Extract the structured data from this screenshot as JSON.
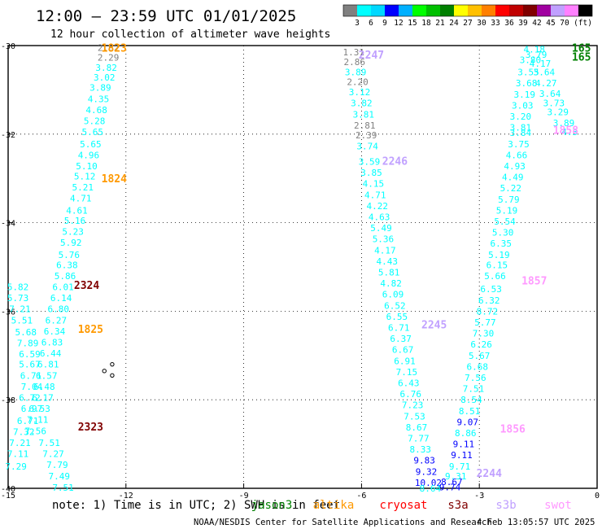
{
  "title": "12:00 — 23:59 UTC 01/01/2025",
  "subtitle": "12 hour collection of altimeter wave heights",
  "colorbar": {
    "unit": "(ft)",
    "ticks": [
      "3",
      "6",
      "9",
      "12",
      "15",
      "18",
      "21",
      "24",
      "27",
      "30",
      "33",
      "36",
      "39",
      "42",
      "45",
      "70"
    ],
    "colors": [
      "#808080",
      "#00ffff",
      "#00d8ff",
      "#0000ff",
      "#00b0ff",
      "#00ff00",
      "#00c000",
      "#008000",
      "#ffff00",
      "#ffc000",
      "#ff8000",
      "#ff0000",
      "#c00000",
      "#800000",
      "#a000a0",
      "#c0a0ff",
      "#ff80ff",
      "#000000"
    ]
  },
  "footer": {
    "note": "note:  1) Time is in UTC; 2) SWH is in feet",
    "credit": "NOAA/NESDIS Center for Satellite Applications and Research",
    "timestamp": "4 Feb 13:05:57 UTC 2025"
  },
  "satellite_legend": [
    {
      "name": "jason3",
      "color": "#008000"
    },
    {
      "name": "altika",
      "color": "#ff9900"
    },
    {
      "name": "cryosat",
      "color": "#ff0000"
    },
    {
      "name": "s3a",
      "color": "#800000"
    },
    {
      "name": "s3b",
      "color": "#c0a0ff"
    },
    {
      "name": "swot",
      "color": "#ff99ff"
    }
  ],
  "chart_data": {
    "type": "scatter",
    "title": "12:00 — 23:59 UTC 01/01/2025",
    "subtitle": "12 hour collection of altimeter wave heights",
    "xlim": [
      -15,
      0
    ],
    "ylim": [
      -40,
      -30
    ],
    "xticks": [
      "-15",
      "-12",
      "-9",
      "-6",
      "-3",
      "0"
    ],
    "yticks": [
      "-30",
      "-32",
      "-34",
      "-36",
      "-38",
      "-40"
    ],
    "grid": true,
    "track_labels": [
      {
        "lon": -12.3,
        "lat": -30.05,
        "text": "1823",
        "color": "#ff9900"
      },
      {
        "lon": -12.3,
        "lat": -33.0,
        "text": "1824",
        "color": "#ff9900"
      },
      {
        "lon": -13.0,
        "lat": -35.4,
        "text": "2324",
        "color": "#800000"
      },
      {
        "lon": -12.9,
        "lat": -36.4,
        "text": "1825",
        "color": "#ff9900"
      },
      {
        "lon": -12.9,
        "lat": -38.6,
        "text": "2323",
        "color": "#800000"
      },
      {
        "lon": -5.75,
        "lat": -30.2,
        "text": "2247",
        "color": "#c0a0ff"
      },
      {
        "lon": -5.15,
        "lat": -32.6,
        "text": "2246",
        "color": "#c0a0ff"
      },
      {
        "lon": -4.15,
        "lat": -36.3,
        "text": "2245",
        "color": "#c0a0ff"
      },
      {
        "lon": -2.75,
        "lat": -39.65,
        "text": "2244",
        "color": "#c0a0ff"
      },
      {
        "lon": -2.15,
        "lat": -38.65,
        "text": "1856",
        "color": "#ff99ff"
      },
      {
        "lon": -1.6,
        "lat": -35.3,
        "text": "1857",
        "color": "#ff99ff"
      },
      {
        "lon": -0.8,
        "lat": -31.9,
        "text": "1858",
        "color": "#ff99ff"
      },
      {
        "lon": -0.4,
        "lat": -30.05,
        "text": "165",
        "color": "#008000"
      },
      {
        "lon": -0.4,
        "lat": -30.25,
        "text": "165",
        "color": "#008000"
      }
    ],
    "series": [
      {
        "name": "1823",
        "color": "#00ffff",
        "points": [
          [
            -12.45,
            -30.05,
            "2.62",
            "#808080"
          ],
          [
            -12.45,
            -30.27,
            "2.29",
            "#808080"
          ],
          [
            -12.5,
            -30.5,
            "3.82",
            ""
          ],
          [
            -12.55,
            -30.72,
            "3.02",
            ""
          ],
          [
            -12.65,
            -30.95,
            "3.89",
            ""
          ],
          [
            -12.7,
            -31.2,
            "4.35",
            ""
          ],
          [
            -12.75,
            -31.45,
            "4.68",
            ""
          ],
          [
            -12.8,
            -31.7,
            "5.28",
            ""
          ],
          [
            -12.85,
            -31.95,
            "5.65",
            ""
          ],
          [
            -12.9,
            -32.22,
            "5.65",
            ""
          ],
          [
            -12.95,
            -32.47,
            "4.96",
            ""
          ],
          [
            -13.0,
            -32.72,
            "5.10",
            ""
          ],
          [
            -13.05,
            -32.95,
            "5.12",
            ""
          ],
          [
            -13.1,
            -33.2,
            "5.21",
            ""
          ],
          [
            -13.15,
            -33.45,
            "4.71",
            ""
          ],
          [
            -13.25,
            -33.72,
            "4.61",
            ""
          ],
          [
            -13.3,
            -33.95,
            "5.16",
            ""
          ],
          [
            -13.35,
            -34.2,
            "5.23",
            ""
          ],
          [
            -13.4,
            -34.45,
            "5.92",
            ""
          ],
          [
            -13.45,
            -34.72,
            "5.76",
            ""
          ],
          [
            -13.5,
            -34.95,
            "6.38",
            ""
          ],
          [
            -13.55,
            -35.2,
            "5.86",
            ""
          ],
          [
            -13.6,
            -35.45,
            "6.01",
            ""
          ],
          [
            -13.65,
            -35.7,
            "6.14",
            ""
          ],
          [
            -13.72,
            -35.95,
            "6.80",
            ""
          ],
          [
            -13.78,
            -36.2,
            "6.27",
            ""
          ],
          [
            -13.82,
            -36.45,
            "6.34",
            ""
          ],
          [
            -13.88,
            -36.7,
            "6.83",
            ""
          ],
          [
            -13.92,
            -36.95,
            "6.44",
            ""
          ],
          [
            -13.98,
            -37.2,
            "6.81",
            ""
          ],
          [
            -14.02,
            -37.45,
            "6.57",
            ""
          ],
          [
            -14.08,
            -37.7,
            "6.48",
            ""
          ],
          [
            -14.12,
            -37.95,
            "6.17",
            ""
          ],
          [
            -14.2,
            -38.2,
            "6.53",
            ""
          ],
          [
            -14.25,
            -38.45,
            "7.11",
            ""
          ],
          [
            -14.3,
            -38.7,
            "7.56",
            ""
          ]
        ]
      },
      {
        "name": "2324",
        "color": "#00ffff",
        "points": [
          [
            -14.75,
            -35.45,
            "5.82",
            ""
          ],
          [
            -14.75,
            -35.7,
            "5.73",
            ""
          ],
          [
            -14.7,
            -35.95,
            "7.21",
            ""
          ],
          [
            -14.65,
            -36.2,
            "5.51",
            ""
          ],
          [
            -14.55,
            -36.47,
            "5.68",
            ""
          ],
          [
            -14.5,
            -36.72,
            "7.89",
            ""
          ],
          [
            -14.45,
            -36.97,
            "6.59",
            ""
          ],
          [
            -14.45,
            -37.2,
            "5.67",
            ""
          ],
          [
            -14.42,
            -37.45,
            "6.71",
            ""
          ],
          [
            -14.4,
            -37.7,
            "7.04",
            ""
          ],
          [
            -14.45,
            -37.95,
            "6.72",
            ""
          ],
          [
            -14.4,
            -38.2,
            "6.97",
            ""
          ],
          [
            -14.5,
            -38.47,
            "6.71",
            ""
          ],
          [
            -14.6,
            -38.72,
            "7.32",
            ""
          ],
          [
            -14.7,
            -38.97,
            "7.21",
            ""
          ],
          [
            -14.75,
            -39.22,
            "7.11",
            ""
          ],
          [
            -14.8,
            -39.5,
            "7.29",
            ""
          ],
          [
            -13.85,
            -39.22,
            "7.27",
            ""
          ],
          [
            -13.75,
            -39.47,
            "7.79",
            ""
          ],
          [
            -13.7,
            -39.72,
            "7.49",
            ""
          ],
          [
            -13.6,
            -39.98,
            "7.51",
            ""
          ],
          [
            -13.95,
            -38.97,
            "7.51",
            ""
          ]
        ]
      },
      {
        "name": "2247",
        "color": "#00ffff",
        "points": [
          [
            -6.2,
            -30.15,
            "1.31",
            "#808080"
          ],
          [
            -6.18,
            -30.37,
            "2.86",
            "#808080"
          ],
          [
            -6.15,
            -30.6,
            "3.89",
            ""
          ],
          [
            -6.1,
            -30.82,
            "2.20",
            "#808080"
          ],
          [
            -6.05,
            -31.05,
            "3.12",
            ""
          ],
          [
            -6.0,
            -31.3,
            "3.82",
            ""
          ],
          [
            -5.95,
            -31.55,
            "3.81",
            ""
          ],
          [
            -5.92,
            -31.8,
            "2.81",
            "#808080"
          ],
          [
            -5.88,
            -32.02,
            "2.39",
            "#808080"
          ],
          [
            -5.85,
            -32.27,
            "3.74",
            ""
          ],
          [
            -5.8,
            -32.62,
            "3.59",
            ""
          ],
          [
            -5.75,
            -32.87,
            "3.85",
            ""
          ],
          [
            -5.7,
            -33.12,
            "4.15",
            ""
          ],
          [
            -5.65,
            -33.37,
            "4.71",
            ""
          ],
          [
            -5.6,
            -33.62,
            "4.22",
            ""
          ],
          [
            -5.55,
            -33.87,
            "4.63",
            ""
          ],
          [
            -5.5,
            -34.12,
            "5.49",
            ""
          ],
          [
            -5.45,
            -34.37,
            "5.36",
            ""
          ],
          [
            -5.4,
            -34.62,
            "4.17",
            ""
          ],
          [
            -5.35,
            -34.87,
            "4.43",
            ""
          ],
          [
            -5.3,
            -35.12,
            "5.81",
            ""
          ],
          [
            -5.25,
            -35.37,
            "4.82",
            ""
          ],
          [
            -5.2,
            -35.62,
            "6.09",
            ""
          ],
          [
            -5.15,
            -35.87,
            "6.52",
            ""
          ],
          [
            -5.1,
            -36.12,
            "6.55",
            ""
          ],
          [
            -5.05,
            -36.37,
            "6.71",
            ""
          ],
          [
            -5.0,
            -36.62,
            "6.37",
            ""
          ],
          [
            -4.95,
            -36.87,
            "6.67",
            ""
          ],
          [
            -4.9,
            -37.12,
            "6.91",
            ""
          ],
          [
            -4.85,
            -37.37,
            "7.15",
            ""
          ],
          [
            -4.8,
            -37.62,
            "6.43",
            ""
          ],
          [
            -4.75,
            -37.87,
            "6.76",
            ""
          ],
          [
            -4.7,
            -38.12,
            "7.23",
            ""
          ],
          [
            -4.65,
            -38.37,
            "7.53",
            ""
          ],
          [
            -4.6,
            -38.62,
            "8.67",
            ""
          ],
          [
            -4.55,
            -38.87,
            "7.77",
            ""
          ],
          [
            -4.5,
            -39.12,
            "8.33",
            ""
          ],
          [
            -4.4,
            -39.37,
            "9.83",
            "#0000ff"
          ],
          [
            -4.35,
            -39.62,
            "9.32",
            "#0000ff"
          ],
          [
            -4.3,
            -39.87,
            "10.02",
            "#0000ff"
          ],
          [
            -4.25,
            -40.0,
            "8.64",
            ""
          ]
        ]
      },
      {
        "name": "1856",
        "color": "#00ffff",
        "points": [
          [
            -3.75,
            -39.97,
            "9.74",
            "#0000ff"
          ],
          [
            -3.7,
            -39.85,
            "8.67",
            "#0000ff"
          ],
          [
            -3.6,
            -39.72,
            "9.31",
            ""
          ],
          [
            -3.5,
            -39.5,
            "9.71",
            ""
          ],
          [
            -3.45,
            -39.25,
            "9.11",
            "#0000ff"
          ],
          [
            -3.4,
            -39.0,
            "9.11",
            "#0000ff"
          ],
          [
            -3.35,
            -38.75,
            "8.86",
            ""
          ],
          [
            -3.3,
            -38.5,
            "9.07",
            "#0000ff"
          ],
          [
            -3.25,
            -38.25,
            "8.51",
            ""
          ],
          [
            -3.2,
            -38.0,
            "8.54",
            ""
          ],
          [
            -3.15,
            -37.75,
            "7.51",
            ""
          ],
          [
            -3.1,
            -37.5,
            "7.56",
            ""
          ],
          [
            -3.05,
            -37.25,
            "6.68",
            ""
          ],
          [
            -3.0,
            -37.0,
            "5.67",
            ""
          ],
          [
            -2.95,
            -36.75,
            "6.26",
            ""
          ],
          [
            -2.9,
            -36.5,
            "7.30",
            ""
          ],
          [
            -2.85,
            -36.25,
            "5.77",
            ""
          ],
          [
            -2.8,
            -36.0,
            "8.72",
            ""
          ],
          [
            -2.75,
            -35.75,
            "6.32",
            ""
          ],
          [
            -2.7,
            -35.5,
            "6.53",
            ""
          ],
          [
            -2.6,
            -35.2,
            "5.66",
            ""
          ],
          [
            -2.55,
            -34.95,
            "6.15",
            ""
          ],
          [
            -2.5,
            -34.72,
            "5.19",
            ""
          ],
          [
            -2.45,
            -34.47,
            "6.35",
            ""
          ],
          [
            -2.4,
            -34.22,
            "5.30",
            ""
          ],
          [
            -2.35,
            -33.97,
            "5.54",
            ""
          ],
          [
            -2.3,
            -33.72,
            "5.19",
            ""
          ],
          [
            -2.25,
            -33.47,
            "5.79",
            ""
          ],
          [
            -2.2,
            -33.22,
            "5.22",
            ""
          ],
          [
            -2.15,
            -32.97,
            "4.49",
            ""
          ],
          [
            -2.1,
            -32.72,
            "4.93",
            ""
          ],
          [
            -2.05,
            -32.47,
            "4.66",
            ""
          ],
          [
            -2.0,
            -32.22,
            "3.75",
            ""
          ],
          [
            -1.95,
            -31.97,
            "3.84",
            ""
          ],
          [
            -1.95,
            -31.85,
            "3.81",
            ""
          ],
          [
            -1.95,
            -31.6,
            "3.20",
            ""
          ],
          [
            -1.9,
            -31.35,
            "3.03",
            ""
          ],
          [
            -1.85,
            -31.1,
            "3.19",
            ""
          ],
          [
            -1.8,
            -30.85,
            "3.68",
            ""
          ],
          [
            -1.75,
            -30.6,
            "3.55",
            ""
          ],
          [
            -1.7,
            -30.32,
            "3.80",
            ""
          ],
          [
            -1.6,
            -30.08,
            "4.18",
            ""
          ],
          [
            -1.55,
            -30.2,
            "3.79",
            ""
          ],
          [
            -1.45,
            -30.4,
            "4.17",
            ""
          ],
          [
            -1.35,
            -30.6,
            "3.64",
            ""
          ],
          [
            -1.3,
            -30.85,
            "4.27",
            ""
          ],
          [
            -1.2,
            -31.08,
            "3.64",
            ""
          ],
          [
            -1.1,
            -31.3,
            "3.73",
            ""
          ],
          [
            -1.0,
            -31.5,
            "3.29",
            ""
          ],
          [
            -0.85,
            -31.75,
            "3.89",
            ""
          ],
          [
            -0.7,
            -31.95,
            "4.3",
            ""
          ]
        ]
      }
    ],
    "islands": [
      [
        -12.35,
        -37.2
      ],
      [
        -12.55,
        -37.35
      ],
      [
        -12.35,
        -37.45
      ]
    ]
  }
}
